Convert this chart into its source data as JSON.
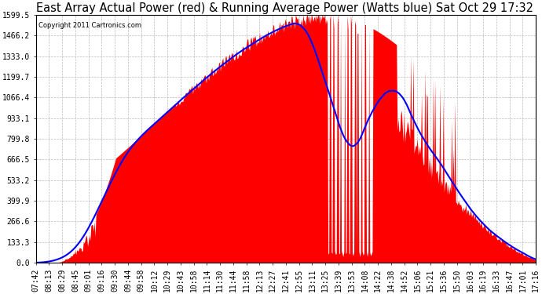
{
  "title": "East Array Actual Power (red) & Running Average Power (Watts blue) Sat Oct 29 17:32",
  "copyright": "Copyright 2011 Cartronics.com",
  "yticks": [
    0.0,
    133.3,
    266.6,
    399.9,
    533.2,
    666.5,
    799.8,
    933.1,
    1066.4,
    1199.7,
    1333.0,
    1466.2,
    1599.5
  ],
  "ylim": [
    0,
    1599.5
  ],
  "xtick_labels": [
    "07:42",
    "08:13",
    "08:29",
    "08:45",
    "09:01",
    "09:16",
    "09:30",
    "09:44",
    "09:58",
    "10:12",
    "10:29",
    "10:43",
    "10:58",
    "11:14",
    "11:30",
    "11:44",
    "11:58",
    "12:13",
    "12:27",
    "12:41",
    "12:55",
    "13:11",
    "13:25",
    "13:39",
    "13:53",
    "14:08",
    "14:22",
    "14:38",
    "14:52",
    "15:06",
    "15:21",
    "15:36",
    "15:50",
    "16:03",
    "16:19",
    "16:33",
    "16:47",
    "17:01",
    "17:16"
  ],
  "background_color": "#ffffff",
  "plot_bg_color": "#ffffff",
  "grid_color": "#bbbbbb",
  "title_fontsize": 10.5,
  "tick_fontsize": 7,
  "n_samples": 600
}
